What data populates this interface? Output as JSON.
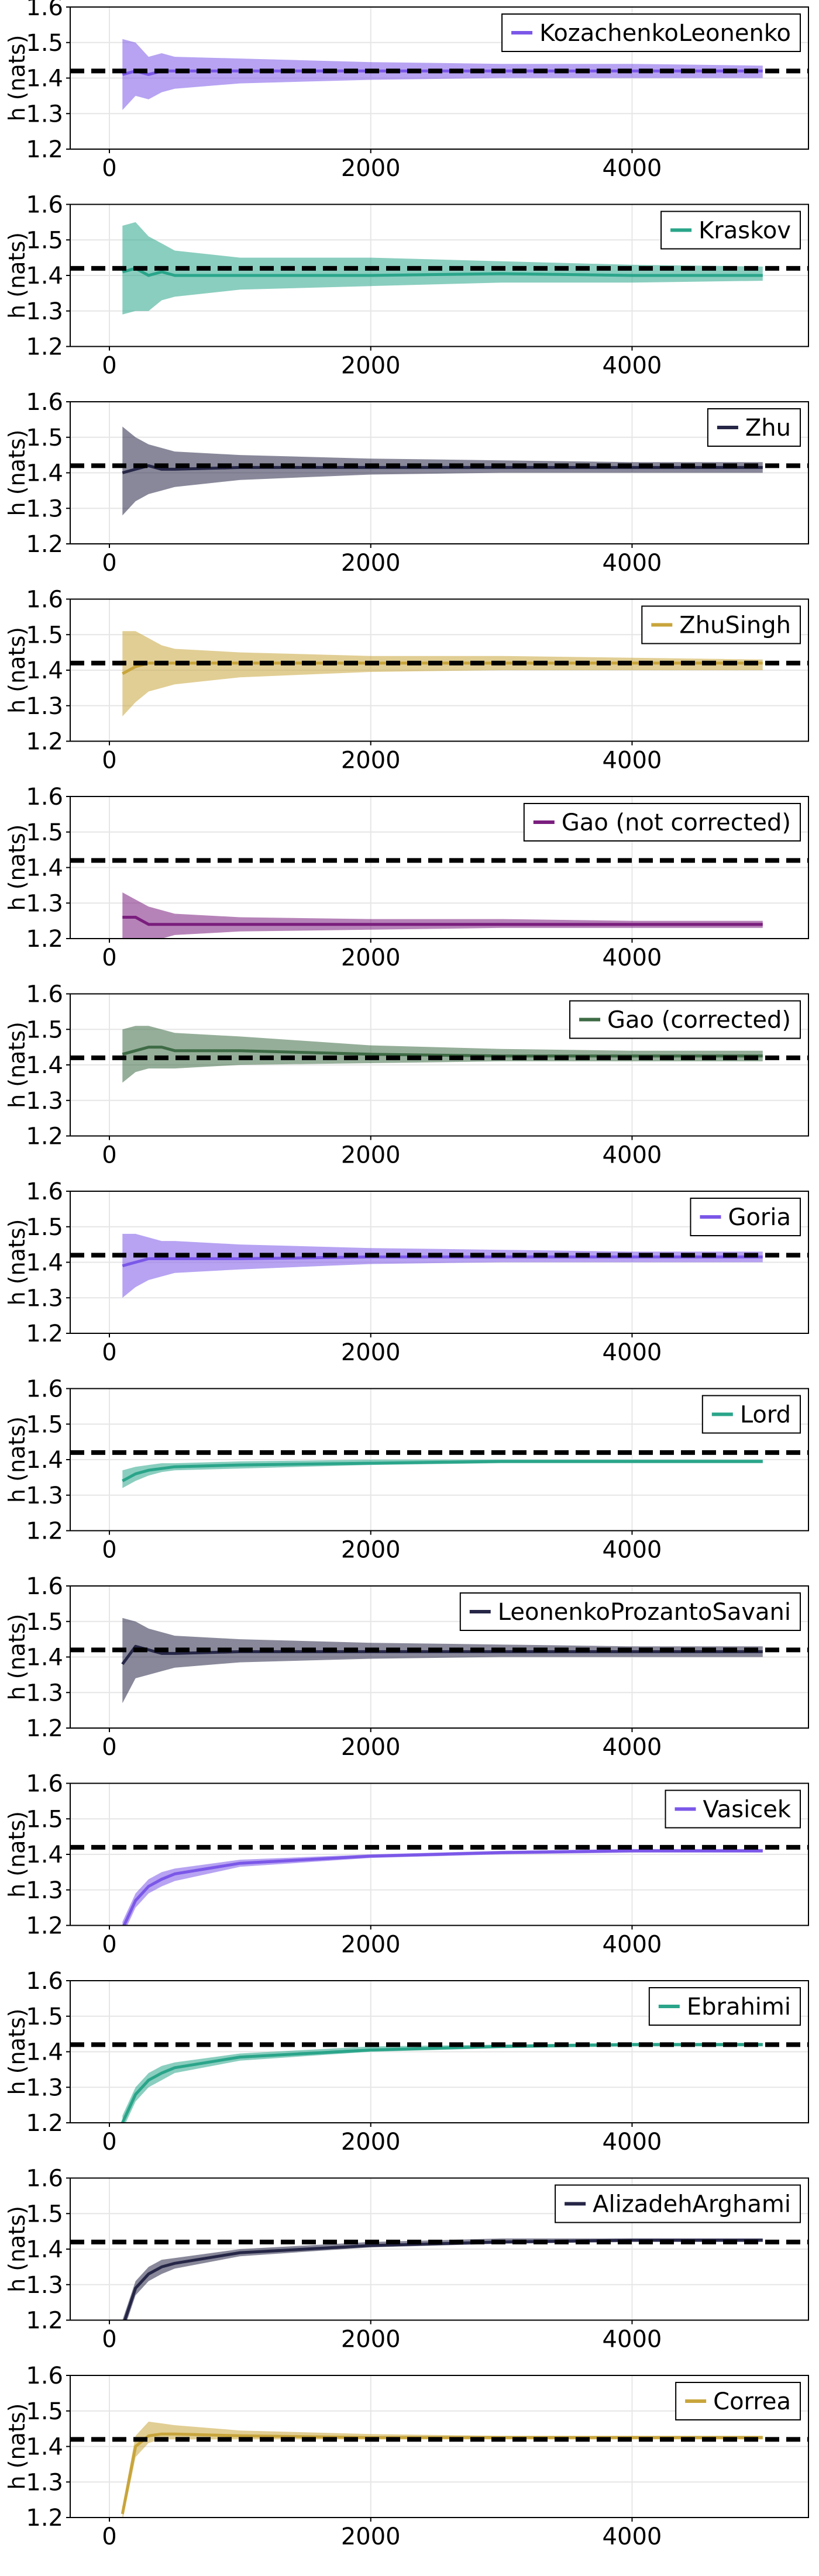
{
  "chart_data": [
    {
      "type": "line",
      "ylabel": "h (nats)",
      "xlim": [
        -300,
        5350
      ],
      "ylim": [
        1.2,
        1.6
      ],
      "xticks": [
        0,
        2000,
        4000
      ],
      "yticks": [
        1.2,
        1.3,
        1.4,
        1.5,
        1.6
      ],
      "grid": true,
      "legend_position": "top-right",
      "reference_line": {
        "y": 1.42,
        "style": "dashed",
        "color": "#000000"
      },
      "color": "#7b57e8",
      "series": [
        {
          "name": "KozachenkoLeonenko",
          "x": [
            100,
            200,
            300,
            400,
            500,
            1000,
            2000,
            3000,
            4000,
            5000
          ],
          "mean": [
            1.41,
            1.42,
            1.41,
            1.42,
            1.42,
            1.42,
            1.42,
            1.42,
            1.42,
            1.42
          ],
          "lower": [
            1.31,
            1.35,
            1.34,
            1.36,
            1.37,
            1.385,
            1.395,
            1.4,
            1.4,
            1.4
          ],
          "upper": [
            1.51,
            1.5,
            1.46,
            1.47,
            1.46,
            1.455,
            1.445,
            1.44,
            1.44,
            1.435
          ]
        }
      ]
    },
    {
      "type": "line",
      "ylabel": "h (nats)",
      "xlim": [
        -300,
        5350
      ],
      "ylim": [
        1.2,
        1.6
      ],
      "xticks": [
        0,
        2000,
        4000
      ],
      "yticks": [
        1.2,
        1.3,
        1.4,
        1.5,
        1.6
      ],
      "grid": true,
      "legend_position": "top-right",
      "reference_line": {
        "y": 1.42,
        "style": "dashed",
        "color": "#000000"
      },
      "color": "#2aa58a",
      "series": [
        {
          "name": "Kraskov",
          "x": [
            100,
            200,
            300,
            400,
            500,
            1000,
            2000,
            3000,
            4000,
            5000
          ],
          "mean": [
            1.41,
            1.42,
            1.4,
            1.41,
            1.4,
            1.4,
            1.4,
            1.405,
            1.4,
            1.4
          ],
          "lower": [
            1.29,
            1.3,
            1.3,
            1.33,
            1.34,
            1.36,
            1.37,
            1.38,
            1.38,
            1.385
          ],
          "upper": [
            1.54,
            1.55,
            1.51,
            1.49,
            1.47,
            1.45,
            1.45,
            1.44,
            1.43,
            1.425
          ]
        }
      ]
    },
    {
      "type": "line",
      "ylabel": "h (nats)",
      "xlim": [
        -300,
        5350
      ],
      "ylim": [
        1.2,
        1.6
      ],
      "xticks": [
        0,
        2000,
        4000
      ],
      "yticks": [
        1.2,
        1.3,
        1.4,
        1.5,
        1.6
      ],
      "grid": true,
      "legend_position": "top-right",
      "reference_line": {
        "y": 1.42,
        "style": "dashed",
        "color": "#000000"
      },
      "color": "#262647",
      "series": [
        {
          "name": "Zhu",
          "x": [
            100,
            200,
            300,
            400,
            500,
            1000,
            2000,
            3000,
            4000,
            5000
          ],
          "mean": [
            1.4,
            1.41,
            1.42,
            1.41,
            1.41,
            1.415,
            1.415,
            1.415,
            1.415,
            1.415
          ],
          "lower": [
            1.28,
            1.32,
            1.34,
            1.35,
            1.36,
            1.38,
            1.395,
            1.4,
            1.4,
            1.4
          ],
          "upper": [
            1.53,
            1.5,
            1.48,
            1.47,
            1.46,
            1.45,
            1.44,
            1.435,
            1.43,
            1.43
          ]
        }
      ]
    },
    {
      "type": "line",
      "ylabel": "h (nats)",
      "xlim": [
        -300,
        5350
      ],
      "ylim": [
        1.2,
        1.6
      ],
      "xticks": [
        0,
        2000,
        4000
      ],
      "yticks": [
        1.2,
        1.3,
        1.4,
        1.5,
        1.6
      ],
      "grid": true,
      "legend_position": "top-right",
      "reference_line": {
        "y": 1.42,
        "style": "dashed",
        "color": "#000000"
      },
      "color": "#c8a53c",
      "series": [
        {
          "name": "ZhuSingh",
          "x": [
            100,
            200,
            300,
            400,
            500,
            1000,
            2000,
            3000,
            4000,
            5000
          ],
          "mean": [
            1.39,
            1.41,
            1.42,
            1.42,
            1.42,
            1.42,
            1.42,
            1.42,
            1.42,
            1.42
          ],
          "lower": [
            1.27,
            1.31,
            1.34,
            1.35,
            1.36,
            1.38,
            1.395,
            1.4,
            1.4,
            1.4
          ],
          "upper": [
            1.51,
            1.51,
            1.49,
            1.47,
            1.46,
            1.45,
            1.44,
            1.44,
            1.435,
            1.43
          ]
        }
      ]
    },
    {
      "type": "line",
      "ylabel": "h (nats)",
      "xlim": [
        -300,
        5350
      ],
      "ylim": [
        1.2,
        1.6
      ],
      "xticks": [
        0,
        2000,
        4000
      ],
      "yticks": [
        1.2,
        1.3,
        1.4,
        1.5,
        1.6
      ],
      "grid": true,
      "legend_position": "top-right",
      "reference_line": {
        "y": 1.42,
        "style": "dashed",
        "color": "#000000"
      },
      "color": "#7a1e7e",
      "series": [
        {
          "name": "Gao (not corrected)",
          "x": [
            100,
            200,
            300,
            400,
            500,
            1000,
            2000,
            3000,
            4000,
            5000
          ],
          "mean": [
            1.26,
            1.26,
            1.24,
            1.24,
            1.24,
            1.24,
            1.24,
            1.24,
            1.24,
            1.24
          ],
          "lower": [
            1.2,
            1.2,
            1.2,
            1.2,
            1.21,
            1.22,
            1.225,
            1.23,
            1.23,
            1.23
          ],
          "upper": [
            1.33,
            1.31,
            1.29,
            1.28,
            1.27,
            1.26,
            1.255,
            1.255,
            1.25,
            1.25
          ]
        }
      ]
    },
    {
      "type": "line",
      "ylabel": "h (nats)",
      "xlim": [
        -300,
        5350
      ],
      "ylim": [
        1.2,
        1.6
      ],
      "xticks": [
        0,
        2000,
        4000
      ],
      "yticks": [
        1.2,
        1.3,
        1.4,
        1.5,
        1.6
      ],
      "grid": true,
      "legend_position": "top-right",
      "reference_line": {
        "y": 1.42,
        "style": "dashed",
        "color": "#000000"
      },
      "color": "#3e6b45",
      "series": [
        {
          "name": "Gao (corrected)",
          "x": [
            100,
            200,
            300,
            400,
            500,
            1000,
            2000,
            3000,
            4000,
            5000
          ],
          "mean": [
            1.43,
            1.44,
            1.45,
            1.45,
            1.44,
            1.44,
            1.43,
            1.425,
            1.425,
            1.425
          ],
          "lower": [
            1.35,
            1.38,
            1.39,
            1.39,
            1.39,
            1.4,
            1.405,
            1.41,
            1.41,
            1.41
          ],
          "upper": [
            1.5,
            1.51,
            1.51,
            1.5,
            1.49,
            1.48,
            1.455,
            1.445,
            1.44,
            1.44
          ]
        }
      ]
    },
    {
      "type": "line",
      "ylabel": "h (nats)",
      "xlim": [
        -300,
        5350
      ],
      "ylim": [
        1.2,
        1.6
      ],
      "xticks": [
        0,
        2000,
        4000
      ],
      "yticks": [
        1.2,
        1.3,
        1.4,
        1.5,
        1.6
      ],
      "grid": true,
      "legend_position": "top-right",
      "reference_line": {
        "y": 1.42,
        "style": "dashed",
        "color": "#000000"
      },
      "color": "#7b57e8",
      "series": [
        {
          "name": "Goria",
          "x": [
            100,
            200,
            300,
            400,
            500,
            1000,
            2000,
            3000,
            4000,
            5000
          ],
          "mean": [
            1.39,
            1.4,
            1.41,
            1.41,
            1.41,
            1.41,
            1.415,
            1.415,
            1.415,
            1.415
          ],
          "lower": [
            1.3,
            1.33,
            1.35,
            1.36,
            1.37,
            1.38,
            1.395,
            1.4,
            1.4,
            1.4
          ],
          "upper": [
            1.48,
            1.48,
            1.47,
            1.46,
            1.46,
            1.45,
            1.44,
            1.435,
            1.43,
            1.43
          ]
        }
      ]
    },
    {
      "type": "line",
      "ylabel": "h (nats)",
      "xlim": [
        -300,
        5350
      ],
      "ylim": [
        1.2,
        1.6
      ],
      "xticks": [
        0,
        2000,
        4000
      ],
      "yticks": [
        1.2,
        1.3,
        1.4,
        1.5,
        1.6
      ],
      "grid": true,
      "legend_position": "top-right",
      "reference_line": {
        "y": 1.42,
        "style": "dashed",
        "color": "#000000"
      },
      "color": "#2aa58a",
      "series": [
        {
          "name": "Lord",
          "x": [
            100,
            200,
            300,
            400,
            500,
            1000,
            2000,
            3000,
            4000,
            5000
          ],
          "mean": [
            1.34,
            1.36,
            1.37,
            1.375,
            1.38,
            1.385,
            1.39,
            1.395,
            1.395,
            1.395
          ],
          "lower": [
            1.32,
            1.34,
            1.355,
            1.365,
            1.37,
            1.375,
            1.385,
            1.39,
            1.39,
            1.39
          ],
          "upper": [
            1.37,
            1.38,
            1.385,
            1.39,
            1.39,
            1.395,
            1.4,
            1.4,
            1.4,
            1.4
          ]
        }
      ]
    },
    {
      "type": "line",
      "ylabel": "h (nats)",
      "xlim": [
        -300,
        5350
      ],
      "ylim": [
        1.2,
        1.6
      ],
      "xticks": [
        0,
        2000,
        4000
      ],
      "yticks": [
        1.2,
        1.3,
        1.4,
        1.5,
        1.6
      ],
      "grid": true,
      "legend_position": "top-right",
      "reference_line": {
        "y": 1.42,
        "style": "dashed",
        "color": "#000000"
      },
      "color": "#262647",
      "series": [
        {
          "name": "LeonenkoProzantoSavani",
          "x": [
            100,
            200,
            300,
            400,
            500,
            1000,
            2000,
            3000,
            4000,
            5000
          ],
          "mean": [
            1.38,
            1.43,
            1.42,
            1.41,
            1.41,
            1.415,
            1.415,
            1.415,
            1.415,
            1.415
          ],
          "lower": [
            1.27,
            1.34,
            1.35,
            1.36,
            1.37,
            1.385,
            1.395,
            1.4,
            1.4,
            1.4
          ],
          "upper": [
            1.51,
            1.5,
            1.48,
            1.47,
            1.46,
            1.45,
            1.44,
            1.435,
            1.43,
            1.43
          ]
        }
      ]
    },
    {
      "type": "line",
      "ylabel": "h (nats)",
      "xlim": [
        -300,
        5350
      ],
      "ylim": [
        1.2,
        1.6
      ],
      "xticks": [
        0,
        2000,
        4000
      ],
      "yticks": [
        1.2,
        1.3,
        1.4,
        1.5,
        1.6
      ],
      "grid": true,
      "legend_position": "top-right",
      "reference_line": {
        "y": 1.42,
        "style": "dashed",
        "color": "#000000"
      },
      "color": "#7b57e8",
      "series": [
        {
          "name": "Vasicek",
          "x": [
            100,
            200,
            300,
            400,
            500,
            1000,
            2000,
            3000,
            4000,
            5000
          ],
          "mean": [
            1.19,
            1.27,
            1.31,
            1.33,
            1.345,
            1.375,
            1.395,
            1.405,
            1.41,
            1.41
          ],
          "lower": [
            1.17,
            1.25,
            1.29,
            1.31,
            1.325,
            1.365,
            1.39,
            1.4,
            1.405,
            1.405
          ],
          "upper": [
            1.21,
            1.29,
            1.33,
            1.35,
            1.36,
            1.385,
            1.4,
            1.41,
            1.415,
            1.415
          ]
        }
      ]
    },
    {
      "type": "line",
      "ylabel": "h (nats)",
      "xlim": [
        -300,
        5350
      ],
      "ylim": [
        1.2,
        1.6
      ],
      "xticks": [
        0,
        2000,
        4000
      ],
      "yticks": [
        1.2,
        1.3,
        1.4,
        1.5,
        1.6
      ],
      "grid": true,
      "legend_position": "top-right",
      "reference_line": {
        "y": 1.42,
        "style": "dashed",
        "color": "#000000"
      },
      "color": "#2aa58a",
      "series": [
        {
          "name": "Ebrahimi",
          "x": [
            100,
            200,
            300,
            400,
            500,
            1000,
            2000,
            3000,
            4000,
            5000
          ],
          "mean": [
            1.2,
            1.28,
            1.32,
            1.34,
            1.355,
            1.385,
            1.405,
            1.415,
            1.42,
            1.42
          ],
          "lower": [
            1.18,
            1.26,
            1.3,
            1.32,
            1.34,
            1.375,
            1.4,
            1.41,
            1.415,
            1.415
          ],
          "upper": [
            1.22,
            1.3,
            1.34,
            1.36,
            1.37,
            1.395,
            1.415,
            1.42,
            1.425,
            1.425
          ]
        }
      ]
    },
    {
      "type": "line",
      "ylabel": "h (nats)",
      "xlim": [
        -300,
        5350
      ],
      "ylim": [
        1.2,
        1.6
      ],
      "xticks": [
        0,
        2000,
        4000
      ],
      "yticks": [
        1.2,
        1.3,
        1.4,
        1.5,
        1.6
      ],
      "grid": true,
      "legend_position": "top-right",
      "reference_line": {
        "y": 1.42,
        "style": "dashed",
        "color": "#000000"
      },
      "color": "#262647",
      "series": [
        {
          "name": "AlizadehArghami",
          "x": [
            100,
            200,
            300,
            400,
            500,
            1000,
            2000,
            3000,
            4000,
            5000
          ],
          "mean": [
            1.18,
            1.29,
            1.33,
            1.35,
            1.36,
            1.39,
            1.41,
            1.42,
            1.425,
            1.425
          ],
          "lower": [
            1.16,
            1.27,
            1.31,
            1.33,
            1.345,
            1.38,
            1.405,
            1.415,
            1.42,
            1.42
          ],
          "upper": [
            1.2,
            1.31,
            1.35,
            1.37,
            1.375,
            1.4,
            1.42,
            1.43,
            1.43,
            1.43
          ]
        }
      ]
    },
    {
      "type": "line",
      "ylabel": "h (nats)",
      "xlim": [
        -300,
        5350
      ],
      "ylim": [
        1.2,
        1.6
      ],
      "xticks": [
        0,
        2000,
        4000
      ],
      "yticks": [
        1.2,
        1.3,
        1.4,
        1.5,
        1.6
      ],
      "grid": true,
      "legend_position": "top-right",
      "reference_line": {
        "y": 1.42,
        "style": "dashed",
        "color": "#000000"
      },
      "color": "#c8a53c",
      "series": [
        {
          "name": "Correa",
          "x": [
            100,
            200,
            300,
            400,
            500,
            1000,
            2000,
            3000,
            4000,
            5000
          ],
          "mean": [
            1.21,
            1.4,
            1.43,
            1.435,
            1.435,
            1.43,
            1.425,
            1.425,
            1.425,
            1.425
          ],
          "lower": [
            1.19,
            1.37,
            1.41,
            1.42,
            1.42,
            1.42,
            1.42,
            1.42,
            1.42,
            1.42
          ],
          "upper": [
            1.23,
            1.43,
            1.47,
            1.465,
            1.46,
            1.445,
            1.435,
            1.43,
            1.43,
            1.43
          ]
        }
      ]
    }
  ]
}
